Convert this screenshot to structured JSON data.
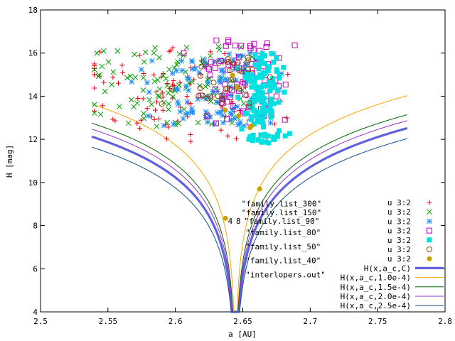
{
  "chart_data": {
    "type": "scatter",
    "xlabel": "a [AU]",
    "ylabel": "H [mag]",
    "xlim": [
      2.5,
      2.8
    ],
    "ylim": [
      4,
      18
    ],
    "xticks": [
      "2.5",
      "2.55",
      "2.6",
      "2.65",
      "2.7",
      "2.75",
      "2.8"
    ],
    "yticks": [
      "4",
      "6",
      "8",
      "10",
      "12",
      "14",
      "16",
      "18"
    ],
    "legend_position": "bottom-right",
    "annotations": [
      {
        "text": "\"family.list_300\"",
        "x": 2.649,
        "y": 8.9
      },
      {
        "text": "\"family.list_150\"",
        "x": 2.649,
        "y": 8.48
      },
      {
        "text": "\"family.list_90\"",
        "x": 2.651,
        "y": 8.08
      },
      {
        "text": "\"family.list_80\"",
        "x": 2.652,
        "y": 7.55
      },
      {
        "text": "\"family.list_50\"",
        "x": 2.652,
        "y": 6.9
      },
      {
        "text": "\"family.list_40\"",
        "x": 2.652,
        "y": 6.25
      },
      {
        "text": "\"interlopers.out\"",
        "x": 2.652,
        "y": 5.6
      },
      {
        "text": "4",
        "x": 2.639,
        "y": 8.08
      },
      {
        "text": "8",
        "x": 2.645,
        "y": 8.08
      }
    ],
    "curve_model": {
      "a_c": 2.6445,
      "C": 0.0002,
      "alb": 0.25,
      "alb_b": 0.05,
      "x_range": [
        2.538,
        2.772
      ]
    },
    "series": [
      {
        "name": "u 3:2",
        "kind": "points",
        "marker": "plus",
        "color": "#e8000b",
        "seed": 11,
        "count": 90,
        "x": [
          2.54,
          2.77
        ],
        "y": [
          11.9,
          16.3
        ],
        "center": 2.6,
        "spread": 0.06
      },
      {
        "name": "u 3:2",
        "kind": "points",
        "marker": "x",
        "color": "#00a000",
        "seed": 22,
        "count": 100,
        "x": [
          2.54,
          2.7
        ],
        "y": [
          12.6,
          16.3
        ],
        "center": 2.6,
        "spread": 0.05
      },
      {
        "name": "u 3:2",
        "kind": "points",
        "marker": "star",
        "color": "#1e90ff",
        "seed": 33,
        "count": 110,
        "x": [
          2.56,
          2.7
        ],
        "y": [
          12.6,
          16.0
        ],
        "center": 2.63,
        "spread": 0.04
      },
      {
        "name": "u 3:2",
        "kind": "points",
        "marker": "square",
        "color": "#c000c0",
        "seed": 44,
        "count": 80,
        "x": [
          2.59,
          2.7
        ],
        "y": [
          12.7,
          16.6
        ],
        "center": 2.65,
        "spread": 0.03
      },
      {
        "name": "u 3:2",
        "kind": "points",
        "marker": "filledsquare",
        "color": "#00e0e0",
        "seed": 55,
        "count": 130,
        "x": [
          2.64,
          2.69
        ],
        "y": [
          11.8,
          16.0
        ],
        "center": 2.665,
        "spread": 0.012
      },
      {
        "name": "u 3:2",
        "kind": "points",
        "marker": "circle",
        "color": "#8b4513",
        "seed": 66,
        "count": 40,
        "x": [
          2.59,
          2.69
        ],
        "y": [
          13.5,
          15.8
        ],
        "center": 2.64,
        "spread": 0.03
      },
      {
        "name": "u 3:2",
        "kind": "points",
        "marker": "filledcircle",
        "color": "#c8a000",
        "seed": 77,
        "count": 8,
        "x": [
          2.6,
          2.7
        ],
        "y": [
          8.3,
          15.5
        ],
        "center": 2.65,
        "spread": 0.03
      },
      {
        "name": "H(x,a_c,C)",
        "kind": "curve",
        "color": "#6060e0",
        "width": 3.2,
        "C": 0.0002,
        "offset": 0
      },
      {
        "name": "H(x,a_c,1.0e-4)",
        "kind": "curve",
        "color": "#ffa500",
        "width": 1,
        "C": 0.0001,
        "offset": 0
      },
      {
        "name": "H(x,a_c,1.5e-4)",
        "kind": "curve",
        "color": "#006400",
        "width": 1,
        "C": 0.00015,
        "offset": 0
      },
      {
        "name": "H(x,a_c,2.0e-4)",
        "kind": "curve",
        "color": "#9932cc",
        "width": 1,
        "C": 0.0002,
        "offset": 0.35
      },
      {
        "name": "H(x,a_c,2.5e-4)",
        "kind": "curve",
        "color": "#104e8b",
        "width": 1,
        "C": 0.00025,
        "offset": 0
      }
    ]
  }
}
